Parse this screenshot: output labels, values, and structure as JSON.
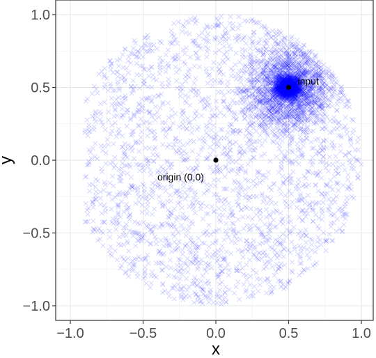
{
  "chart_data": {
    "type": "scatter",
    "xlabel": "x",
    "ylabel": "y",
    "xlim": [
      -1.0,
      1.0
    ],
    "ylim": [
      -1.0,
      1.0
    ],
    "x_ticks": [
      -1.0,
      -0.5,
      0.0,
      0.5,
      1.0
    ],
    "y_ticks": [
      -1.0,
      -0.5,
      0.0,
      0.5,
      1.0
    ],
    "x_tick_labels": [
      "−1.0",
      "−0.5",
      "0.0",
      "0.5",
      "1.0"
    ],
    "y_tick_labels": [
      "−1.0",
      "−0.5",
      "0.0",
      "0.5",
      "1.0"
    ],
    "grid": true,
    "legend": "none",
    "marker": "x",
    "point_color": "#0000ff",
    "point_opacity": 0.18,
    "sample_count": 5200,
    "region": {
      "shape": "disk",
      "center": [
        0.0,
        0.0
      ],
      "radius": 1.0,
      "x_min": -0.9,
      "y_max": 1.0
    },
    "concentration": {
      "center": [
        0.5,
        0.5
      ],
      "weight": 0.5
    },
    "annotations": [
      {
        "label": "input",
        "x": 0.5,
        "y": 0.5,
        "label_pos": "right"
      },
      {
        "label": "origin (0,0)",
        "x": 0.0,
        "y": 0.0,
        "label_pos": "below-left"
      }
    ]
  }
}
